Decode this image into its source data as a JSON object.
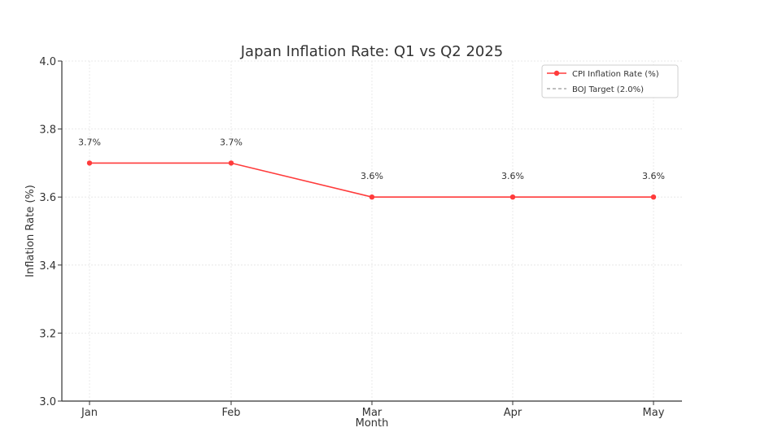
{
  "chart_data": {
    "type": "line",
    "title": "Japan Inflation Rate: Q1 vs Q2 2025",
    "xlabel": "Month",
    "ylabel": "Inflation Rate (%)",
    "categories": [
      "Jan",
      "Feb",
      "Mar",
      "Apr",
      "May"
    ],
    "ylim": [
      3.0,
      4.0
    ],
    "yticks": [
      "3.0",
      "3.2",
      "3.4",
      "3.6",
      "3.8",
      "4.0"
    ],
    "grid": true,
    "legend_position": "top-right",
    "series": [
      {
        "name": "CPI Inflation Rate (%)",
        "values": [
          3.7,
          3.7,
          3.6,
          3.6,
          3.6
        ],
        "data_labels": [
          "3.7%",
          "3.7%",
          "3.6%",
          "3.6%",
          "3.6%"
        ],
        "color": "#ff3b3b",
        "marker": "circle"
      },
      {
        "name": "BOJ Target (2.0%)",
        "value": 2.0,
        "color": "#999999",
        "style": "dashed"
      }
    ]
  }
}
